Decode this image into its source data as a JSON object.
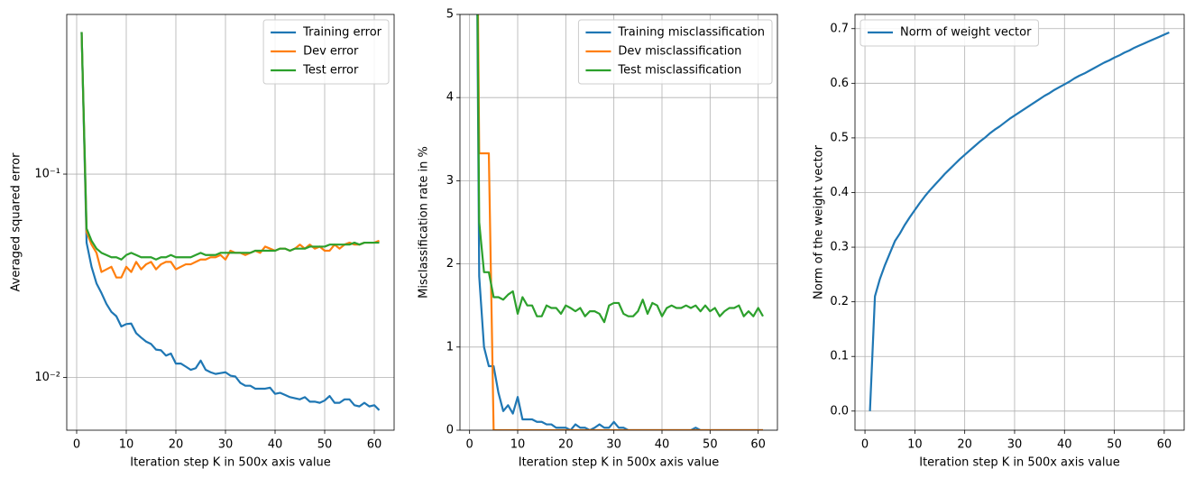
{
  "chart_data": [
    {
      "type": "line",
      "yscale": "log",
      "grid": true,
      "legend": "upper right",
      "xlabel": "Iteration step K in 500x axis value",
      "ylabel": "Averaged squared error",
      "xlim": [
        -2,
        64
      ],
      "xticks": [
        0,
        10,
        20,
        30,
        40,
        50,
        60
      ],
      "ylim": [
        0.0055,
        0.61
      ],
      "yticks": [
        {
          "value": 0.01,
          "label": "10⁻²"
        },
        {
          "value": 0.1,
          "label": "10⁻¹"
        }
      ],
      "x": [
        1,
        2,
        3,
        4,
        5,
        6,
        7,
        8,
        9,
        10,
        11,
        12,
        13,
        14,
        15,
        16,
        17,
        18,
        19,
        20,
        21,
        22,
        23,
        24,
        25,
        26,
        27,
        28,
        29,
        30,
        31,
        32,
        33,
        34,
        35,
        36,
        37,
        38,
        39,
        40,
        41,
        42,
        43,
        44,
        45,
        46,
        47,
        48,
        49,
        50,
        51,
        52,
        53,
        54,
        55,
        56,
        57,
        58,
        59,
        60,
        61
      ],
      "series": [
        {
          "name": "Training error",
          "color": "#1f77b4",
          "values": [
            0.5,
            0.046,
            0.035,
            0.029,
            0.026,
            0.023,
            0.021,
            0.02,
            0.0178,
            0.0183,
            0.0184,
            0.0165,
            0.0157,
            0.015,
            0.0146,
            0.0137,
            0.0136,
            0.0128,
            0.0131,
            0.0117,
            0.0117,
            0.0113,
            0.0109,
            0.0111,
            0.0121,
            0.0109,
            0.0106,
            0.0104,
            0.0105,
            0.0106,
            0.0102,
            0.0101,
            0.0094,
            0.0091,
            0.0091,
            0.0088,
            0.0088,
            0.0088,
            0.0089,
            0.0083,
            0.0084,
            0.0082,
            0.008,
            0.0079,
            0.0078,
            0.008,
            0.0076,
            0.0076,
            0.0075,
            0.0077,
            0.0081,
            0.0075,
            0.0075,
            0.0078,
            0.0078,
            0.0073,
            0.0072,
            0.0075,
            0.0072,
            0.0073,
            0.0069
          ]
        },
        {
          "name": "Dev error",
          "color": "#ff7f0e",
          "values": [
            0.5,
            0.052,
            0.045,
            0.041,
            0.033,
            0.034,
            0.035,
            0.031,
            0.031,
            0.035,
            0.033,
            0.037,
            0.034,
            0.036,
            0.037,
            0.034,
            0.036,
            0.037,
            0.037,
            0.034,
            0.035,
            0.036,
            0.036,
            0.037,
            0.038,
            0.038,
            0.039,
            0.039,
            0.04,
            0.038,
            0.042,
            0.041,
            0.041,
            0.04,
            0.041,
            0.042,
            0.041,
            0.044,
            0.043,
            0.042,
            0.043,
            0.043,
            0.042,
            0.043,
            0.045,
            0.043,
            0.045,
            0.043,
            0.044,
            0.042,
            0.042,
            0.045,
            0.043,
            0.045,
            0.046,
            0.045,
            0.045,
            0.046,
            0.046,
            0.046,
            0.047
          ]
        },
        {
          "name": "Test error",
          "color": "#2ca02c",
          "values": [
            0.5,
            0.054,
            0.047,
            0.043,
            0.041,
            0.04,
            0.039,
            0.039,
            0.038,
            0.04,
            0.041,
            0.04,
            0.039,
            0.039,
            0.039,
            0.038,
            0.039,
            0.039,
            0.04,
            0.039,
            0.039,
            0.039,
            0.039,
            0.04,
            0.041,
            0.04,
            0.04,
            0.04,
            0.041,
            0.041,
            0.041,
            0.041,
            0.041,
            0.041,
            0.041,
            0.042,
            0.042,
            0.042,
            0.042,
            0.042,
            0.043,
            0.043,
            0.042,
            0.043,
            0.043,
            0.043,
            0.044,
            0.044,
            0.044,
            0.044,
            0.045,
            0.045,
            0.045,
            0.045,
            0.045,
            0.046,
            0.045,
            0.046,
            0.046,
            0.046,
            0.046
          ]
        }
      ]
    },
    {
      "type": "line",
      "grid": true,
      "legend": "upper right",
      "xlabel": "Iteration step K in 500x axis value",
      "ylabel": "Misclassification rate in %",
      "xlim": [
        -2,
        64
      ],
      "xticks": [
        0,
        10,
        20,
        30,
        40,
        50,
        60
      ],
      "ylim": [
        0,
        5
      ],
      "yticks": [
        0,
        1,
        2,
        3,
        4,
        5
      ],
      "x": [
        1,
        2,
        3,
        4,
        5,
        6,
        7,
        8,
        9,
        10,
        11,
        12,
        13,
        14,
        15,
        16,
        17,
        18,
        19,
        20,
        21,
        22,
        23,
        24,
        25,
        26,
        27,
        28,
        29,
        30,
        31,
        32,
        33,
        34,
        35,
        36,
        37,
        38,
        39,
        40,
        41,
        42,
        43,
        44,
        45,
        46,
        47,
        48,
        49,
        50,
        51,
        52,
        53,
        54,
        55,
        56,
        57,
        58,
        59,
        60,
        61
      ],
      "series": [
        {
          "name": "Training misclassification",
          "color": "#1f77b4",
          "values": [
            10,
            1.85,
            1.0,
            0.77,
            0.77,
            0.45,
            0.23,
            0.3,
            0.2,
            0.4,
            0.13,
            0.13,
            0.13,
            0.1,
            0.1,
            0.07,
            0.07,
            0.03,
            0.03,
            0.03,
            0,
            0.07,
            0.03,
            0.03,
            0,
            0.03,
            0.07,
            0.03,
            0.03,
            0.1,
            0.03,
            0.03,
            0,
            0,
            0,
            0,
            0,
            0,
            0,
            0,
            0,
            0,
            0,
            0,
            0,
            0,
            0.03,
            0,
            0,
            0,
            0,
            0,
            0,
            0,
            0,
            0,
            0,
            0,
            0,
            0,
            0
          ]
        },
        {
          "name": "Dev misclassification",
          "color": "#ff7f0e",
          "values": [
            10,
            3.33,
            3.33,
            3.33,
            0,
            0,
            0,
            0,
            0,
            0,
            0,
            0,
            0,
            0,
            0,
            0,
            0,
            0,
            0,
            0,
            0,
            0,
            0,
            0,
            0,
            0,
            0,
            0,
            0,
            0,
            0,
            0,
            0,
            0,
            0,
            0,
            0,
            0,
            0,
            0,
            0,
            0,
            0,
            0,
            0,
            0,
            0,
            0,
            0,
            0,
            0,
            0,
            0,
            0,
            0,
            0,
            0,
            0,
            0,
            0,
            0
          ]
        },
        {
          "name": "Test misclassification",
          "color": "#2ca02c",
          "values": [
            10,
            2.5,
            1.9,
            1.9,
            1.6,
            1.6,
            1.57,
            1.63,
            1.67,
            1.4,
            1.6,
            1.5,
            1.5,
            1.37,
            1.37,
            1.5,
            1.47,
            1.47,
            1.4,
            1.5,
            1.47,
            1.43,
            1.47,
            1.37,
            1.43,
            1.43,
            1.4,
            1.3,
            1.5,
            1.53,
            1.53,
            1.4,
            1.37,
            1.37,
            1.43,
            1.57,
            1.4,
            1.53,
            1.5,
            1.37,
            1.47,
            1.5,
            1.47,
            1.47,
            1.5,
            1.47,
            1.5,
            1.43,
            1.5,
            1.43,
            1.47,
            1.37,
            1.43,
            1.47,
            1.47,
            1.5,
            1.37,
            1.43,
            1.37,
            1.47,
            1.37
          ]
        }
      ]
    },
    {
      "type": "line",
      "grid": true,
      "legend": "upper left",
      "xlabel": "Iteration step K in 500x axis value",
      "ylabel": "Norm of the weight vector",
      "xlim": [
        -2,
        64
      ],
      "xticks": [
        0,
        10,
        20,
        30,
        40,
        50,
        60
      ],
      "ylim": [
        -0.035,
        0.726
      ],
      "yticks": [
        {
          "value": 0,
          "label": "0.0"
        },
        0.1,
        0.2,
        0.3,
        0.4,
        0.5,
        0.6,
        0.7
      ],
      "x": [
        1,
        2,
        3,
        4,
        5,
        6,
        7,
        8,
        9,
        10,
        11,
        12,
        13,
        14,
        15,
        16,
        17,
        18,
        19,
        20,
        21,
        22,
        23,
        24,
        25,
        26,
        27,
        28,
        29,
        30,
        31,
        32,
        33,
        34,
        35,
        36,
        37,
        38,
        39,
        40,
        41,
        42,
        43,
        44,
        45,
        46,
        47,
        48,
        49,
        50,
        51,
        52,
        53,
        54,
        55,
        56,
        57,
        58,
        59,
        60,
        61
      ],
      "series": [
        {
          "name": "Norm of weight vector",
          "color": "#1f77b4",
          "values": [
            0,
            0.21,
            0.242,
            0.267,
            0.289,
            0.311,
            0.325,
            0.341,
            0.355,
            0.368,
            0.381,
            0.393,
            0.404,
            0.414,
            0.424,
            0.434,
            0.443,
            0.452,
            0.461,
            0.469,
            0.477,
            0.485,
            0.493,
            0.5,
            0.508,
            0.515,
            0.521,
            0.528,
            0.535,
            0.541,
            0.547,
            0.553,
            0.559,
            0.565,
            0.571,
            0.577,
            0.582,
            0.588,
            0.593,
            0.598,
            0.603,
            0.609,
            0.614,
            0.618,
            0.623,
            0.628,
            0.633,
            0.638,
            0.642,
            0.647,
            0.651,
            0.656,
            0.66,
            0.665,
            0.669,
            0.673,
            0.677,
            0.681,
            0.685,
            0.689,
            0.693
          ]
        }
      ]
    }
  ]
}
